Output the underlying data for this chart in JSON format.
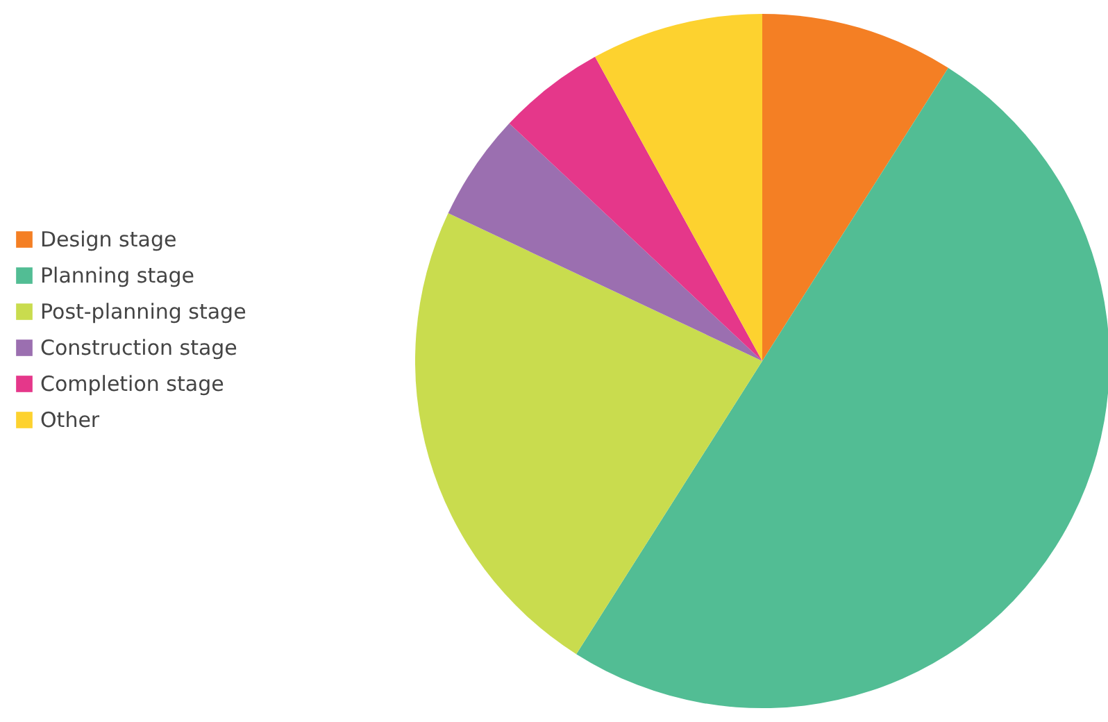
{
  "chart_data": {
    "type": "pie",
    "categories": [
      "Design stage",
      "Planning stage",
      "Post-planning stage",
      "Construction stage",
      "Completion stage",
      "Other"
    ],
    "values": [
      9,
      50,
      23,
      5,
      5,
      8
    ],
    "colors": [
      "#f47f24",
      "#52bd94",
      "#c9dc4e",
      "#9b6fb0",
      "#e5378a",
      "#fdd22f"
    ],
    "legend": "left"
  }
}
